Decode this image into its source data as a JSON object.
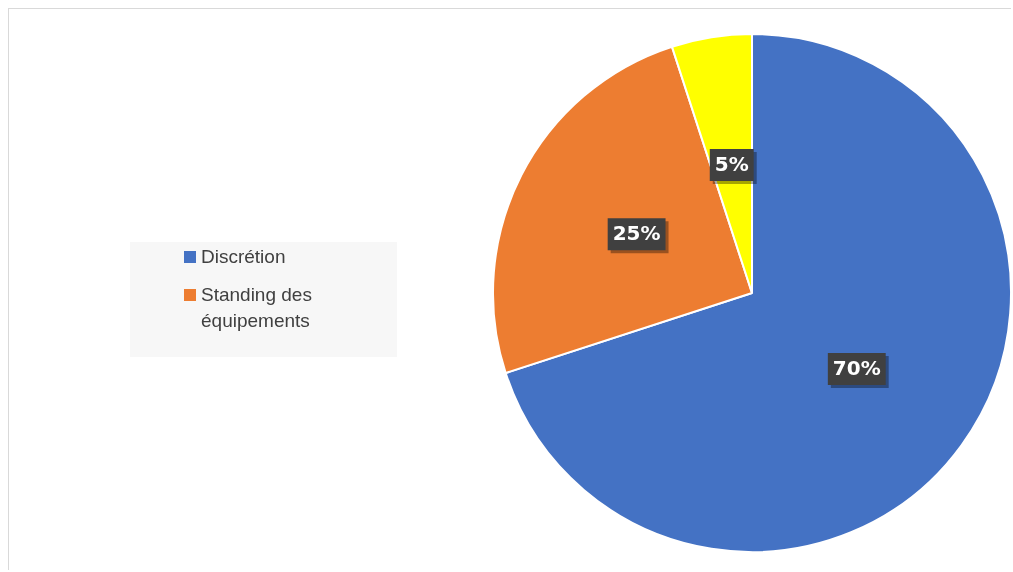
{
  "chart_data": {
    "type": "pie",
    "categories": [
      "Discrétion",
      "Standing des équipements",
      null
    ],
    "values": [
      70,
      25,
      5
    ],
    "colors": [
      "#4472c4",
      "#ed7d31",
      "#ffff00"
    ],
    "value_labels": [
      "70%",
      "25%",
      "5%"
    ],
    "legend": "left"
  }
}
